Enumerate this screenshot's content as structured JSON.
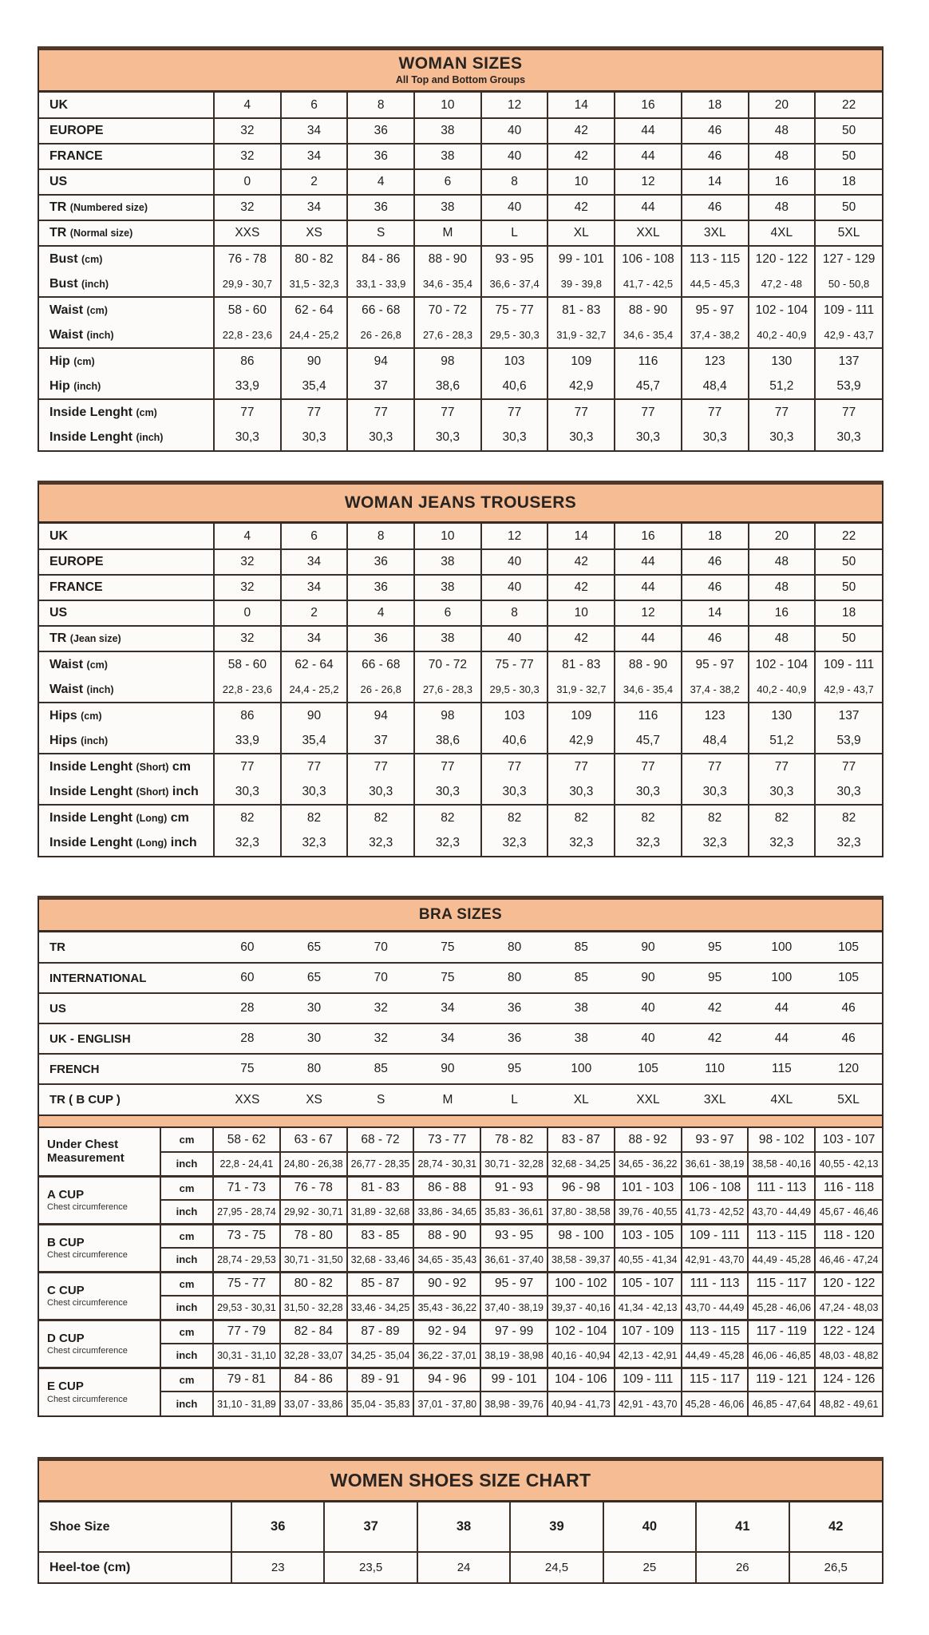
{
  "colors": {
    "header_bg": "#f6bd95",
    "border_dark": "#362b25",
    "cell_bg": "#fcfbf9"
  },
  "tables": {
    "woman_sizes": {
      "title": "WOMAN SIZES",
      "subtitle": "All Top and Bottom Groups",
      "rows": [
        {
          "label": "UK",
          "values": [
            "4",
            "6",
            "8",
            "10",
            "12",
            "14",
            "16",
            "18",
            "20",
            "22"
          ]
        },
        {
          "label": "EUROPE",
          "values": [
            "32",
            "34",
            "36",
            "38",
            "40",
            "42",
            "44",
            "46",
            "48",
            "50"
          ]
        },
        {
          "label": "FRANCE",
          "values": [
            "32",
            "34",
            "36",
            "38",
            "40",
            "42",
            "44",
            "46",
            "48",
            "50"
          ]
        },
        {
          "label": "US",
          "values": [
            "0",
            "2",
            "4",
            "6",
            "8",
            "10",
            "12",
            "14",
            "16",
            "18"
          ]
        },
        {
          "label": "TR (Numbered size)",
          "values": [
            "32",
            "34",
            "36",
            "38",
            "40",
            "42",
            "44",
            "46",
            "48",
            "50"
          ]
        },
        {
          "label": "TR (Normal size)",
          "values": [
            "XXS",
            "XS",
            "S",
            "M",
            "L",
            "XL",
            "XXL",
            "3XL",
            "4XL",
            "5XL"
          ]
        },
        {
          "label": "Bust (cm)",
          "pair": "top",
          "values": [
            "76 - 78",
            "80 - 82",
            "84 - 86",
            "88 - 90",
            "93 - 95",
            "99 - 101",
            "106 - 108",
            "113 - 115",
            "120 - 122",
            "127 - 129"
          ]
        },
        {
          "label": "Bust (inch)",
          "pair": "bottom",
          "small": true,
          "values": [
            "29,9 - 30,7",
            "31,5 - 32,3",
            "33,1 - 33,9",
            "34,6 - 35,4",
            "36,6 - 37,4",
            "39 - 39,8",
            "41,7 - 42,5",
            "44,5 - 45,3",
            "47,2 - 48",
            "50 - 50,8"
          ]
        },
        {
          "label": "Waist (cm)",
          "pair": "top",
          "values": [
            "58 - 60",
            "62 - 64",
            "66 - 68",
            "70 - 72",
            "75 - 77",
            "81 - 83",
            "88 - 90",
            "95 - 97",
            "102 - 104",
            "109 - 111"
          ]
        },
        {
          "label": "Waist (inch)",
          "pair": "bottom",
          "small": true,
          "values": [
            "22,8 - 23,6",
            "24,4 - 25,2",
            "26 - 26,8",
            "27,6 - 28,3",
            "29,5 - 30,3",
            "31,9 - 32,7",
            "34,6 - 35,4",
            "37,4 - 38,2",
            "40,2 - 40,9",
            "42,9 - 43,7"
          ]
        },
        {
          "label": "Hip (cm)",
          "pair": "top",
          "values": [
            "86",
            "90",
            "94",
            "98",
            "103",
            "109",
            "116",
            "123",
            "130",
            "137"
          ]
        },
        {
          "label": "Hip (inch)",
          "pair": "bottom",
          "values": [
            "33,9",
            "35,4",
            "37",
            "38,6",
            "40,6",
            "42,9",
            "45,7",
            "48,4",
            "51,2",
            "53,9"
          ]
        },
        {
          "label": "Inside Lenght (cm)",
          "pair": "top",
          "values": [
            "77",
            "77",
            "77",
            "77",
            "77",
            "77",
            "77",
            "77",
            "77",
            "77"
          ]
        },
        {
          "label": "Inside Lenght (inch)",
          "pair": "bottom",
          "values": [
            "30,3",
            "30,3",
            "30,3",
            "30,3",
            "30,3",
            "30,3",
            "30,3",
            "30,3",
            "30,3",
            "30,3"
          ]
        }
      ]
    },
    "jeans_trousers": {
      "title": "WOMAN JEANS TROUSERS",
      "rows": [
        {
          "label": "UK",
          "values": [
            "4",
            "6",
            "8",
            "10",
            "12",
            "14",
            "16",
            "18",
            "20",
            "22"
          ]
        },
        {
          "label": "EUROPE",
          "values": [
            "32",
            "34",
            "36",
            "38",
            "40",
            "42",
            "44",
            "46",
            "48",
            "50"
          ]
        },
        {
          "label": "FRANCE",
          "values": [
            "32",
            "34",
            "36",
            "38",
            "40",
            "42",
            "44",
            "46",
            "48",
            "50"
          ]
        },
        {
          "label": "US",
          "values": [
            "0",
            "2",
            "4",
            "6",
            "8",
            "10",
            "12",
            "14",
            "16",
            "18"
          ]
        },
        {
          "label": "TR (Jean size)",
          "values": [
            "32",
            "34",
            "36",
            "38",
            "40",
            "42",
            "44",
            "46",
            "48",
            "50"
          ]
        },
        {
          "label": "Waist (cm)",
          "pair": "top",
          "values": [
            "58 - 60",
            "62 - 64",
            "66 - 68",
            "70 - 72",
            "75 - 77",
            "81 - 83",
            "88 - 90",
            "95 - 97",
            "102 - 104",
            "109 - 111"
          ]
        },
        {
          "label": "Waist (inch)",
          "pair": "bottom",
          "small": true,
          "values": [
            "22,8 - 23,6",
            "24,4 - 25,2",
            "26 - 26,8",
            "27,6 - 28,3",
            "29,5 - 30,3",
            "31,9 - 32,7",
            "34,6 - 35,4",
            "37,4 - 38,2",
            "40,2 - 40,9",
            "42,9 - 43,7"
          ]
        },
        {
          "label": "Hips (cm)",
          "pair": "top",
          "values": [
            "86",
            "90",
            "94",
            "98",
            "103",
            "109",
            "116",
            "123",
            "130",
            "137"
          ]
        },
        {
          "label": "Hips (inch)",
          "pair": "bottom",
          "values": [
            "33,9",
            "35,4",
            "37",
            "38,6",
            "40,6",
            "42,9",
            "45,7",
            "48,4",
            "51,2",
            "53,9"
          ]
        },
        {
          "label": "Inside Lenght (Short) cm",
          "pair": "top",
          "values": [
            "77",
            "77",
            "77",
            "77",
            "77",
            "77",
            "77",
            "77",
            "77",
            "77"
          ]
        },
        {
          "label": "Inside Lenght (Short) inch",
          "pair": "bottom",
          "values": [
            "30,3",
            "30,3",
            "30,3",
            "30,3",
            "30,3",
            "30,3",
            "30,3",
            "30,3",
            "30,3",
            "30,3"
          ]
        },
        {
          "label": "Inside Lenght (Long) cm",
          "pair": "top",
          "values": [
            "82",
            "82",
            "82",
            "82",
            "82",
            "82",
            "82",
            "82",
            "82",
            "82"
          ]
        },
        {
          "label": "Inside Lenght (Long) inch",
          "pair": "bottom",
          "values": [
            "32,3",
            "32,3",
            "32,3",
            "32,3",
            "32,3",
            "32,3",
            "32,3",
            "32,3",
            "32,3",
            "32,3"
          ]
        }
      ]
    },
    "bra_sizes": {
      "title": "BRA SIZES",
      "band_rows": [
        {
          "label": "TR",
          "values": [
            "60",
            "65",
            "70",
            "75",
            "80",
            "85",
            "90",
            "95",
            "100",
            "105"
          ]
        },
        {
          "label": "INTERNATIONAL",
          "values": [
            "60",
            "65",
            "70",
            "75",
            "80",
            "85",
            "90",
            "95",
            "100",
            "105"
          ]
        },
        {
          "label": "US",
          "values": [
            "28",
            "30",
            "32",
            "34",
            "36",
            "38",
            "40",
            "42",
            "44",
            "46"
          ]
        },
        {
          "label": "UK - ENGLISH",
          "values": [
            "28",
            "30",
            "32",
            "34",
            "36",
            "38",
            "40",
            "42",
            "44",
            "46"
          ]
        },
        {
          "label": "FRENCH",
          "values": [
            "75",
            "80",
            "85",
            "90",
            "95",
            "100",
            "105",
            "110",
            "115",
            "120"
          ]
        },
        {
          "label": "TR ( B CUP )",
          "values": [
            "XXS",
            "XS",
            "S",
            "M",
            "L",
            "XL",
            "XXL",
            "3XL",
            "4XL",
            "5XL"
          ]
        }
      ],
      "units": {
        "cm": "cm",
        "inch": "inch"
      },
      "cup_groups": [
        {
          "label": "Under Chest Measurement",
          "sublabel": "",
          "cm": [
            "58 - 62",
            "63 - 67",
            "68 - 72",
            "73 - 77",
            "78 - 82",
            "83 - 87",
            "88 - 92",
            "93 - 97",
            "98 - 102",
            "103 - 107"
          ],
          "inch": [
            "22,8 - 24,41",
            "24,80 - 26,38",
            "26,77 - 28,35",
            "28,74 - 30,31",
            "30,71 - 32,28",
            "32,68 - 34,25",
            "34,65 - 36,22",
            "36,61 - 38,19",
            "38,58 - 40,16",
            "40,55 - 42,13"
          ]
        },
        {
          "label": "A CUP",
          "sublabel": "Chest circumference",
          "cm": [
            "71 - 73",
            "76 - 78",
            "81 - 83",
            "86 - 88",
            "91 - 93",
            "96 - 98",
            "101 - 103",
            "106 - 108",
            "111 - 113",
            "116 - 118"
          ],
          "inch": [
            "27,95 - 28,74",
            "29,92 - 30,71",
            "31,89 - 32,68",
            "33,86 - 34,65",
            "35,83 - 36,61",
            "37,80 - 38,58",
            "39,76 - 40,55",
            "41,73 - 42,52",
            "43,70 - 44,49",
            "45,67 - 46,46"
          ]
        },
        {
          "label": "B CUP",
          "sublabel": "Chest circumference",
          "cm": [
            "73 - 75",
            "78 - 80",
            "83 - 85",
            "88 - 90",
            "93 - 95",
            "98 - 100",
            "103 - 105",
            "109 - 111",
            "113 - 115",
            "118 - 120"
          ],
          "inch": [
            "28,74 - 29,53",
            "30,71 - 31,50",
            "32,68 - 33,46",
            "34,65 - 35,43",
            "36,61 - 37,40",
            "38,58 - 39,37",
            "40,55 - 41,34",
            "42,91 - 43,70",
            "44,49 - 45,28",
            "46,46 - 47,24"
          ]
        },
        {
          "label": "C CUP",
          "sublabel": "Chest circumference",
          "cm": [
            "75 - 77",
            "80 - 82",
            "85 - 87",
            "90 - 92",
            "95 - 97",
            "100 - 102",
            "105 - 107",
            "111 - 113",
            "115 - 117",
            "120 - 122"
          ],
          "inch": [
            "29,53 - 30,31",
            "31,50 - 32,28",
            "33,46 - 34,25",
            "35,43 - 36,22",
            "37,40 - 38,19",
            "39,37 - 40,16",
            "41,34 - 42,13",
            "43,70 - 44,49",
            "45,28 - 46,06",
            "47,24 - 48,03"
          ]
        },
        {
          "label": "D CUP",
          "sublabel": "Chest circumference",
          "cm": [
            "77 - 79",
            "82 - 84",
            "87 - 89",
            "92 - 94",
            "97 - 99",
            "102 - 104",
            "107 - 109",
            "113 - 115",
            "117 - 119",
            "122 - 124"
          ],
          "inch": [
            "30,31 - 31,10",
            "32,28 - 33,07",
            "34,25 - 35,04",
            "36,22 - 37,01",
            "38,19 - 38,98",
            "40,16 - 40,94",
            "42,13 - 42,91",
            "44,49 - 45,28",
            "46,06 - 46,85",
            "48,03 - 48,82"
          ]
        },
        {
          "label": "E CUP",
          "sublabel": "Chest circumference",
          "cm": [
            "79 - 81",
            "84 - 86",
            "89 - 91",
            "94 - 96",
            "99 - 101",
            "104 - 106",
            "109 - 111",
            "115 - 117",
            "119 - 121",
            "124 - 126"
          ],
          "inch": [
            "31,10 - 31,89",
            "33,07 - 33,86",
            "35,04 - 35,83",
            "37,01 - 37,80",
            "38,98 - 39,76",
            "40,94 - 41,73",
            "42,91 - 43,70",
            "45,28 - 46,06",
            "46,85 - 47,64",
            "48,82 - 49,61"
          ]
        }
      ]
    },
    "shoes": {
      "title": "WOMEN SHOES SIZE CHART",
      "rows": [
        {
          "label": "Shoe Size",
          "bold": true,
          "values": [
            "36",
            "37",
            "38",
            "39",
            "40",
            "41",
            "42"
          ]
        },
        {
          "label": "Heel-toe (cm)",
          "values": [
            "23",
            "23,5",
            "24",
            "24,5",
            "25",
            "26",
            "26,5"
          ]
        }
      ]
    }
  }
}
